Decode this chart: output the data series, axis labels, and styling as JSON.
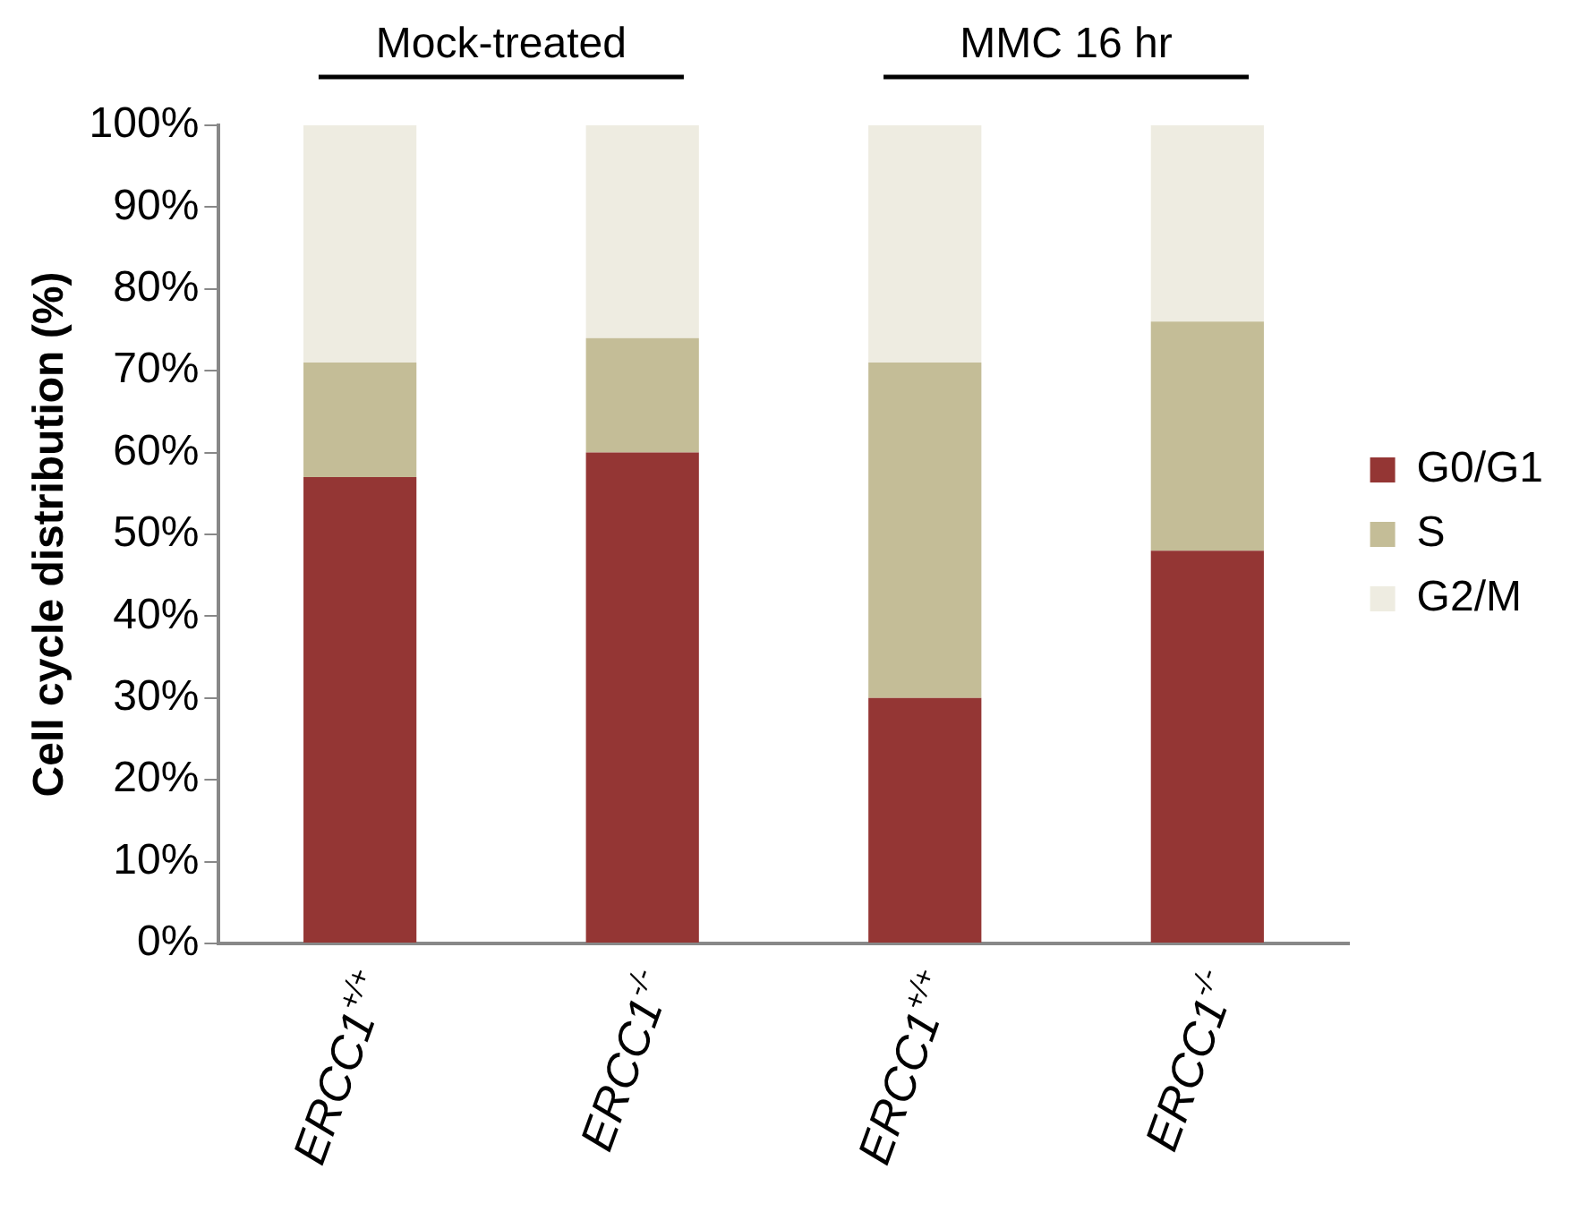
{
  "chart_data": {
    "type": "bar",
    "stacked": true,
    "ylabel": "Cell cycle distribution (%)",
    "categories": [
      "ERCC1$^{+/+}$",
      "ERCC1$^{-/-}$",
      "ERCC1$^{+/+}$",
      "ERCC1$^{-/-}$"
    ],
    "series": [
      {
        "name": "G0/G1",
        "color": "#943634",
        "values": [
          57,
          60,
          30,
          48
        ]
      },
      {
        "name": "S",
        "color": "#c4bd97",
        "values": [
          14,
          14,
          41,
          28
        ]
      },
      {
        "name": "G2/M",
        "color": "#eeece1",
        "values": [
          29,
          26,
          29,
          24
        ]
      }
    ],
    "ylim": [
      0,
      100
    ],
    "yticks": [
      {
        "value": 0,
        "label": "0%"
      },
      {
        "value": 10,
        "label": "10%"
      },
      {
        "value": 20,
        "label": "20%"
      },
      {
        "value": 30,
        "label": "30%"
      },
      {
        "value": 40,
        "label": "40%"
      },
      {
        "value": 50,
        "label": "50%"
      },
      {
        "value": 60,
        "label": "60%"
      },
      {
        "value": 70,
        "label": "70%"
      },
      {
        "value": 80,
        "label": "80%"
      },
      {
        "value": 90,
        "label": "90%"
      },
      {
        "value": 100,
        "label": "100%"
      }
    ],
    "legend": "right",
    "annotations": [
      "Mock-treated",
      "MMC 16 hr"
    ]
  }
}
